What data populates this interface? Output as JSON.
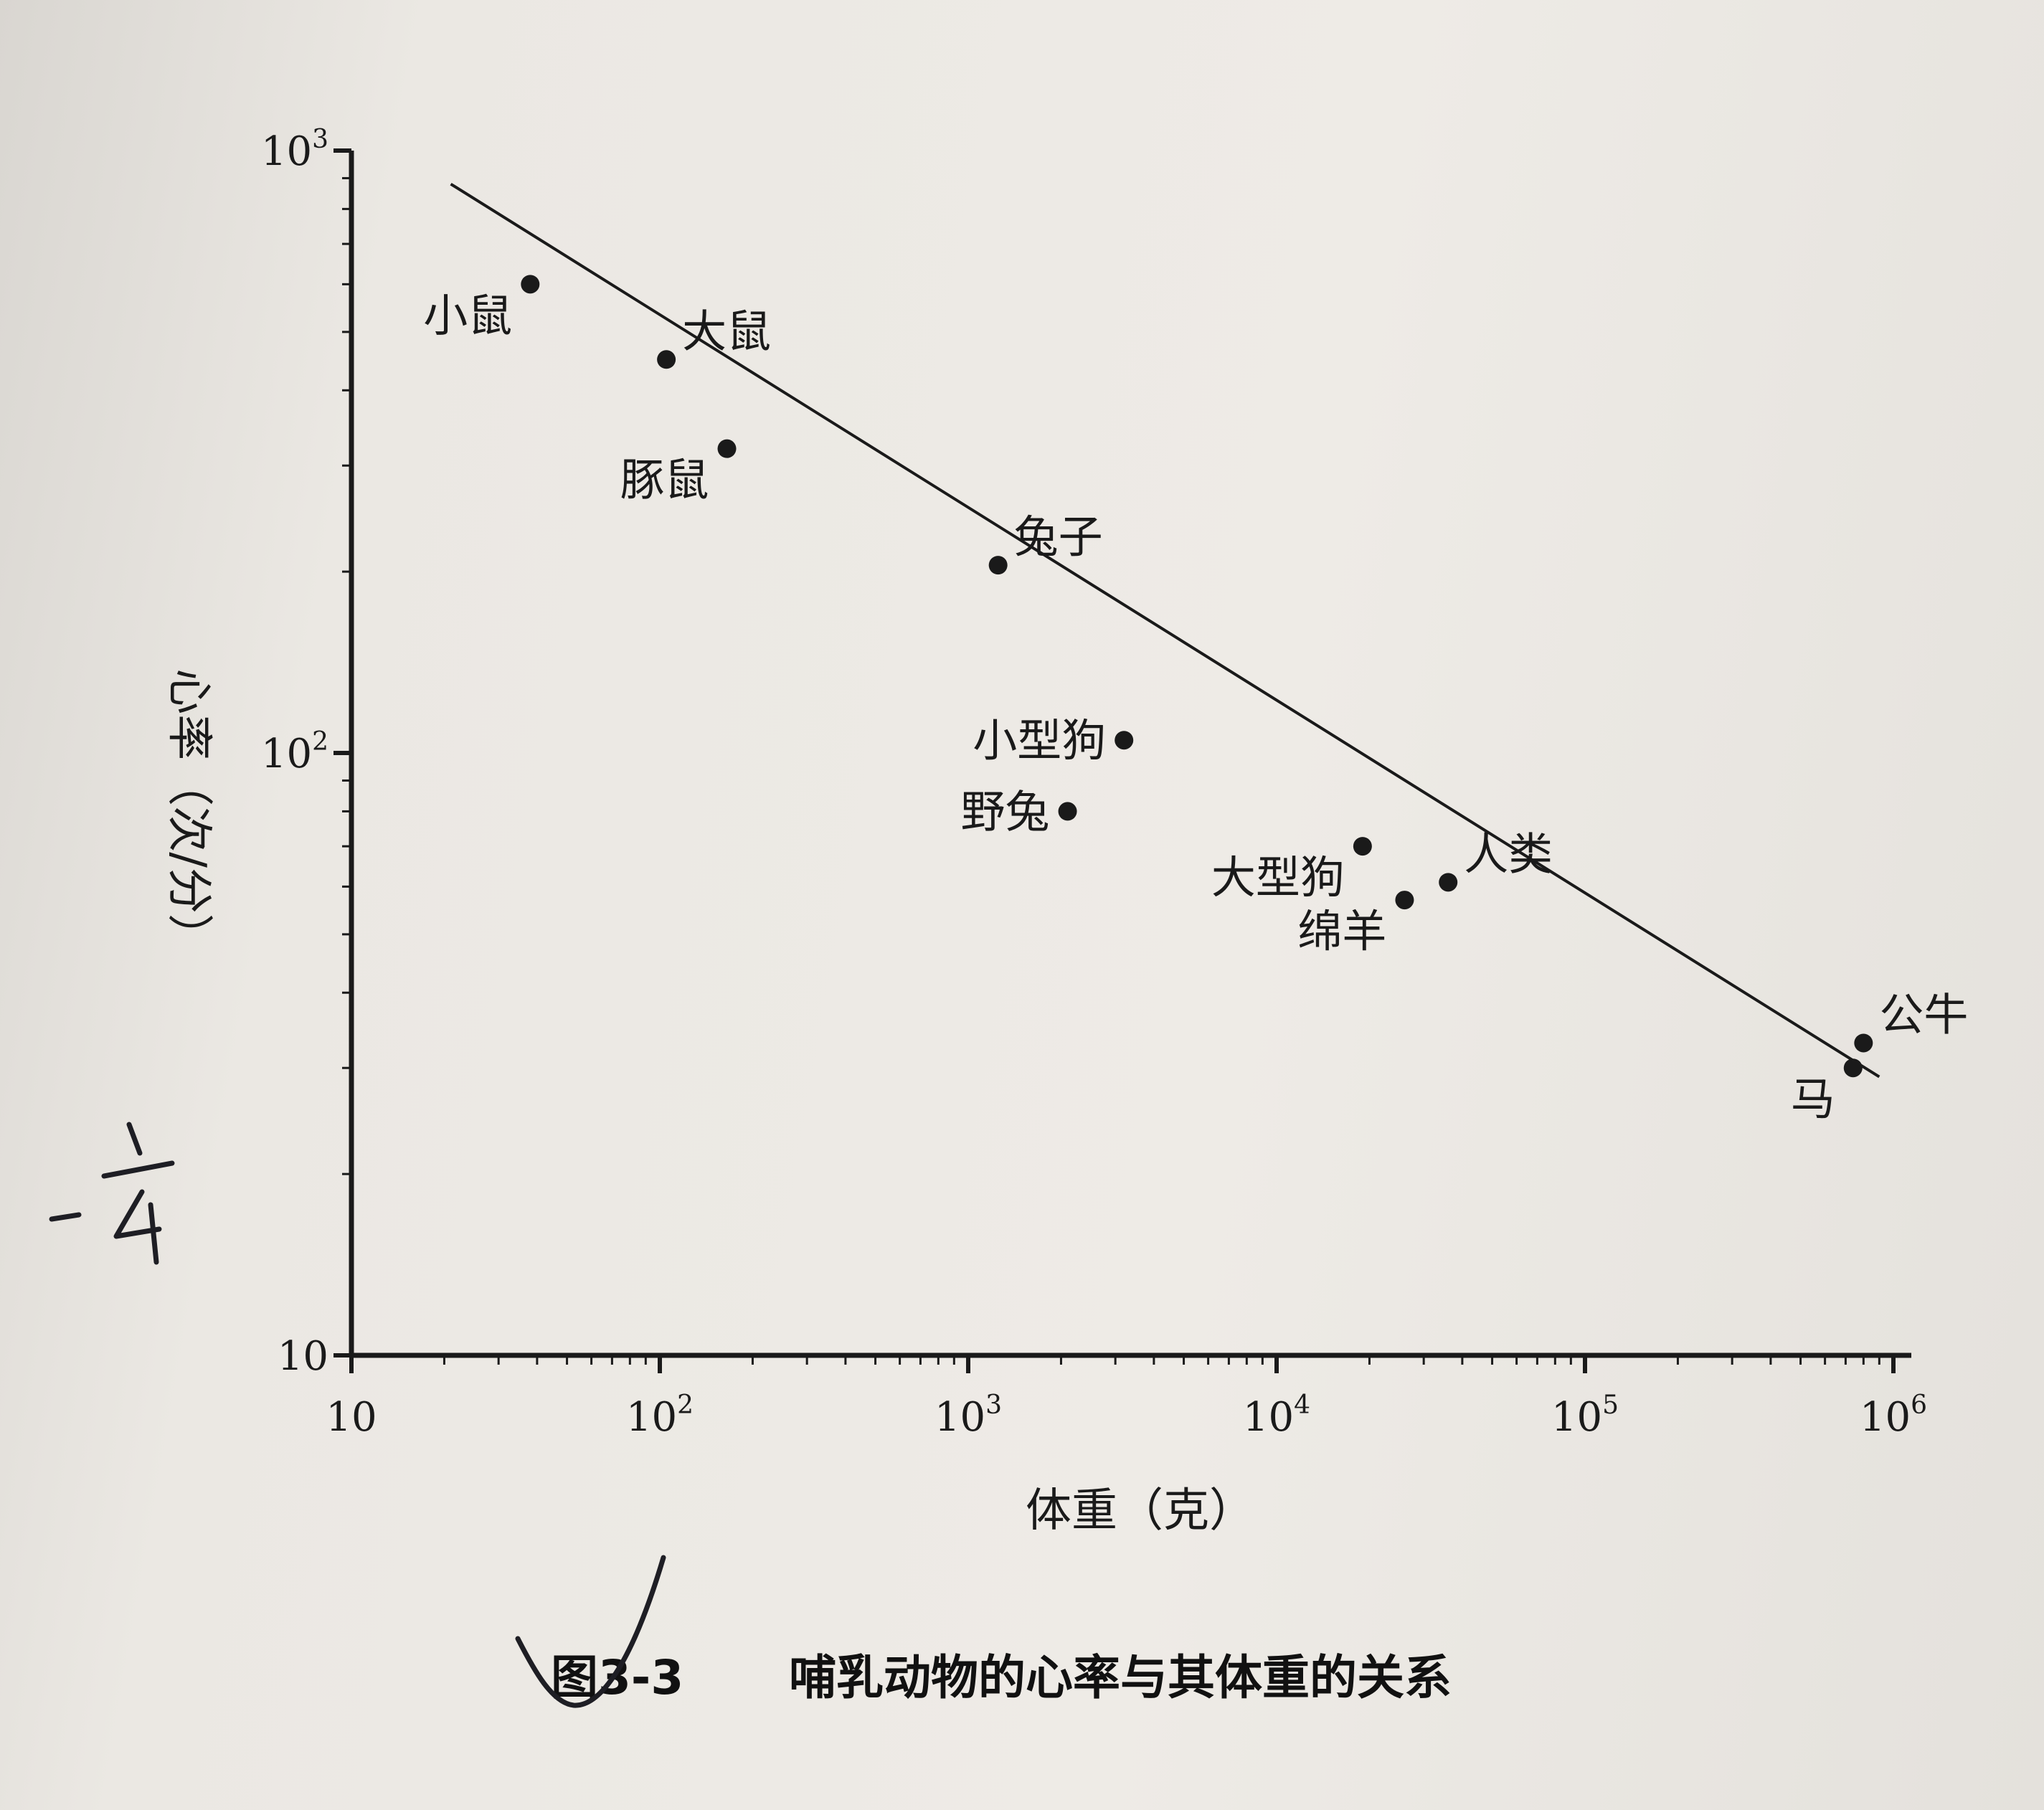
{
  "chart_data": {
    "type": "scatter",
    "x_scale": "log",
    "y_scale": "log",
    "xlim": [
      10,
      1000000
    ],
    "ylim": [
      10,
      1000
    ],
    "xlabel": "体重（克）",
    "ylabel": "心率（次/分）",
    "x_ticks": [
      {
        "value": 10,
        "base": "10",
        "exp": ""
      },
      {
        "value": 100,
        "base": "10",
        "exp": "2"
      },
      {
        "value": 1000,
        "base": "10",
        "exp": "3"
      },
      {
        "value": 10000,
        "base": "10",
        "exp": "4"
      },
      {
        "value": 100000,
        "base": "10",
        "exp": "5"
      },
      {
        "value": 1000000,
        "base": "10",
        "exp": "6"
      }
    ],
    "y_ticks": [
      {
        "value": 10,
        "base": "10",
        "exp": ""
      },
      {
        "value": 100,
        "base": "10",
        "exp": "2"
      },
      {
        "value": 1000,
        "base": "10",
        "exp": "3"
      }
    ],
    "points": [
      {
        "label": "小鼠",
        "x": 38,
        "y": 600,
        "label_pos": "below-left"
      },
      {
        "label": "大鼠",
        "x": 105,
        "y": 450,
        "label_pos": "above-right"
      },
      {
        "label": "豚鼠",
        "x": 165,
        "y": 320,
        "label_pos": "below-left"
      },
      {
        "label": "兔子",
        "x": 1250,
        "y": 205,
        "label_pos": "above-right"
      },
      {
        "label": "小型狗",
        "x": 3200,
        "y": 105,
        "label_pos": "left"
      },
      {
        "label": "野兔",
        "x": 2100,
        "y": 80,
        "label_pos": "left"
      },
      {
        "label": "大型狗",
        "x": 19000,
        "y": 70,
        "label_pos": "below-left"
      },
      {
        "label": "绵羊",
        "x": 26000,
        "y": 57,
        "label_pos": "below-left"
      },
      {
        "label": "人类",
        "x": 36000,
        "y": 61,
        "label_pos": "above-right"
      },
      {
        "label": "公牛",
        "x": 800000,
        "y": 33,
        "label_pos": "above-right"
      },
      {
        "label": "马",
        "x": 740000,
        "y": 30,
        "label_pos": "below-left"
      }
    ],
    "fit_line": {
      "x": [
        21,
        900000
      ],
      "y": [
        880,
        29
      ]
    }
  },
  "caption": {
    "number": "图3-3",
    "text": "哺乳动物的心率与其体重的关系"
  },
  "annotation": {
    "margin_note": "-1/4"
  }
}
